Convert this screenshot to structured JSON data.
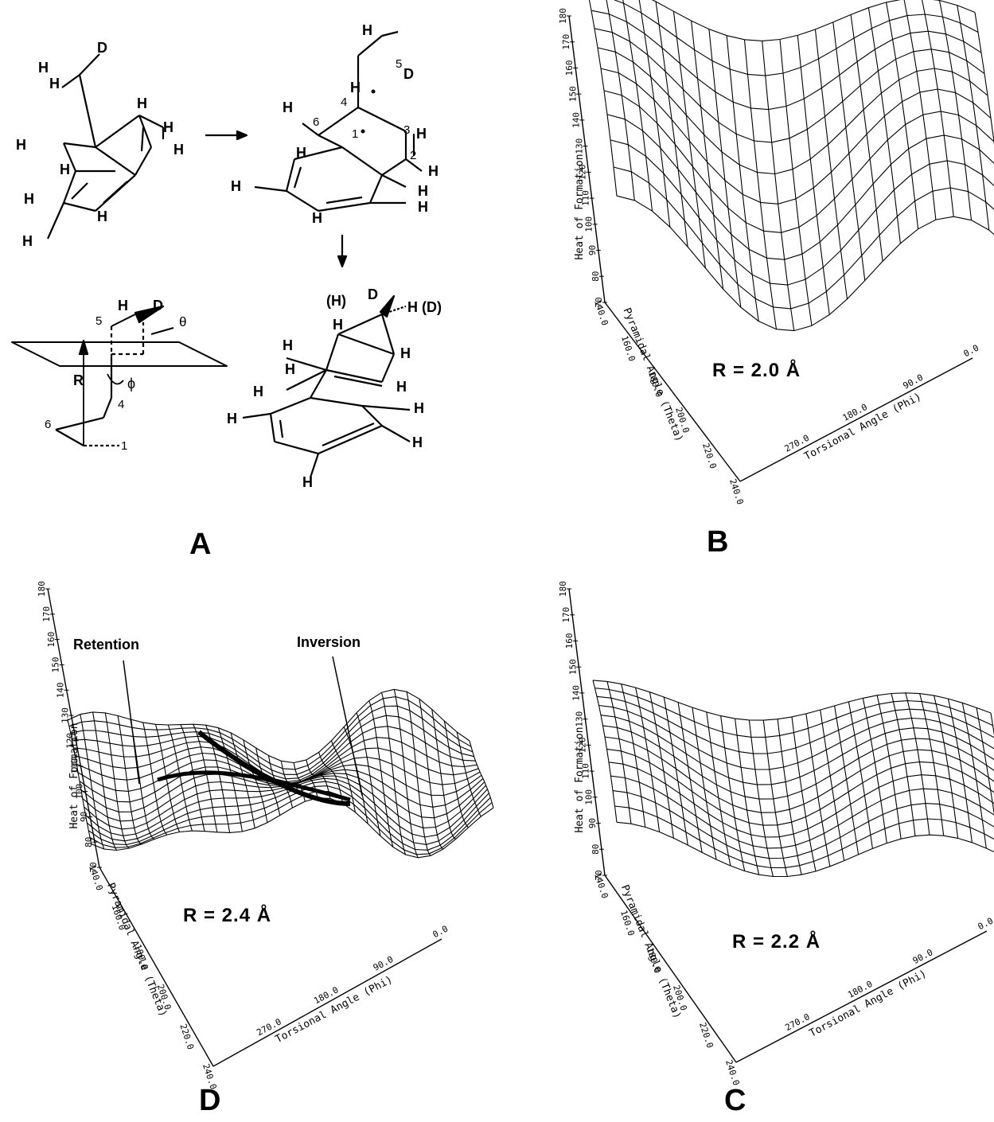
{
  "panels": {
    "A": {
      "label": "A"
    },
    "B": {
      "label": "B",
      "r_label": "R = 2.0 Å"
    },
    "C": {
      "label": "C",
      "r_label": "R = 2.2 Å"
    },
    "D": {
      "label": "D",
      "r_label": "R = 2.4 Å",
      "annotation_left": "Retention",
      "annotation_right": "Inversion"
    }
  },
  "axes": {
    "z_label": "Heat of Formation",
    "z_ticks": [
      "70",
      "80",
      "90",
      "100",
      "110",
      "120",
      "130",
      "140",
      "150",
      "160",
      "170",
      "180"
    ],
    "y_label": "Pyramidal Angle (Theta)",
    "y_ticks": [
      "140.0",
      "160.0",
      "180.0",
      "200.0",
      "220.0",
      "240.0"
    ],
    "x_label": "Torsional Angle (Phi)",
    "x_ticks": [
      "270.0",
      "180.0",
      "90.0",
      "0.0"
    ]
  },
  "chem": {
    "atoms": [
      "H",
      "D",
      "H",
      "H",
      "H",
      "H",
      "H",
      "H",
      "H",
      "H",
      "H",
      "H"
    ],
    "numbers": [
      "1",
      "2",
      "3",
      "4",
      "5",
      "6"
    ],
    "geom_labels": {
      "theta": "θ",
      "phi": "ϕ",
      "R": "R"
    },
    "product_labels": {
      "hd": "(H)",
      "d": "D",
      "h_d": "H (D)"
    }
  }
}
